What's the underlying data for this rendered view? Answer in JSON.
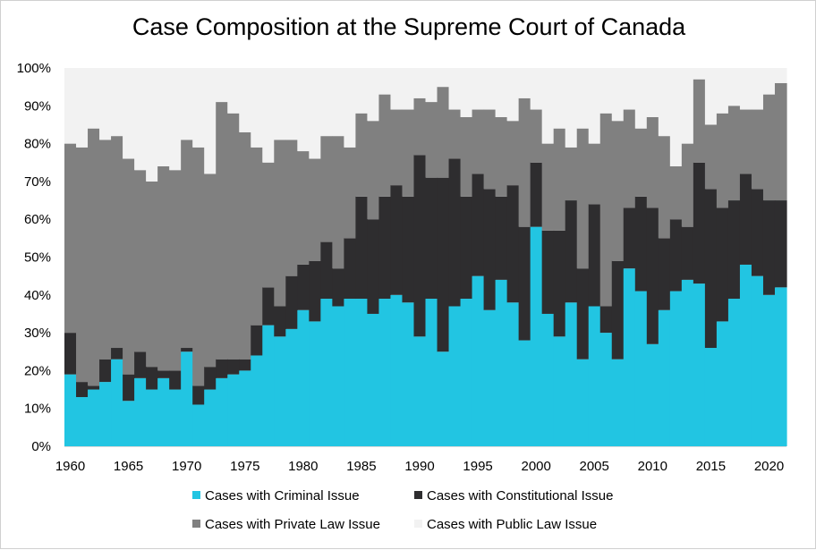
{
  "chart_data": {
    "type": "area",
    "title": "Case Composition at the Supreme Court of Canada",
    "stacked": true,
    "x": [
      1960,
      1961,
      1962,
      1963,
      1964,
      1965,
      1966,
      1967,
      1968,
      1969,
      1970,
      1971,
      1972,
      1973,
      1974,
      1975,
      1976,
      1977,
      1978,
      1979,
      1980,
      1981,
      1982,
      1983,
      1984,
      1985,
      1986,
      1987,
      1988,
      1989,
      1990,
      1991,
      1992,
      1993,
      1994,
      1995,
      1996,
      1997,
      1998,
      1999,
      2000,
      2001,
      2002,
      2003,
      2004,
      2005,
      2006,
      2007,
      2008,
      2009,
      2010,
      2011,
      2012,
      2013,
      2014,
      2015,
      2016,
      2017,
      2018,
      2019,
      2020,
      2021
    ],
    "x_ticks": [
      "1960",
      "1965",
      "1970",
      "1975",
      "1980",
      "1985",
      "1990",
      "1995",
      "2000",
      "2005",
      "2010",
      "2015",
      "2020"
    ],
    "y_ticks": [
      "0%",
      "10%",
      "20%",
      "30%",
      "40%",
      "50%",
      "60%",
      "70%",
      "80%",
      "90%",
      "100%"
    ],
    "ylim": [
      0,
      100
    ],
    "grid": false,
    "legend_position": "bottom",
    "series": [
      {
        "name": "Cases with Criminal Issue",
        "color": "#22C5E2",
        "values": [
          19,
          13,
          15,
          17,
          23,
          12,
          18,
          15,
          18,
          15,
          25,
          11,
          15,
          18,
          19,
          20,
          24,
          32,
          29,
          31,
          36,
          33,
          39,
          37,
          39,
          39,
          35,
          39,
          40,
          38,
          29,
          39,
          25,
          37,
          39,
          45,
          36,
          44,
          38,
          28,
          58,
          35,
          29,
          38,
          23,
          37,
          30,
          23,
          47,
          41,
          27,
          36,
          41,
          44,
          43,
          26,
          33,
          39,
          48,
          45,
          40,
          42
        ]
      },
      {
        "name": "Cases with Constitutional Issue",
        "color": "#2E2D2F",
        "values": [
          11,
          4,
          1,
          6,
          3,
          7,
          7,
          6,
          2,
          5,
          1,
          5,
          6,
          5,
          4,
          3,
          8,
          10,
          8,
          14,
          12,
          16,
          15,
          10,
          16,
          27,
          25,
          27,
          29,
          28,
          48,
          32,
          46,
          39,
          27,
          27,
          32,
          22,
          31,
          30,
          17,
          22,
          28,
          27,
          24,
          27,
          7,
          26,
          16,
          25,
          36,
          19,
          19,
          14,
          32,
          42,
          30,
          26,
          24,
          23,
          25,
          23
        ]
      },
      {
        "name": "Cases with Private Law Issue",
        "color": "#808080",
        "values": [
          50,
          62,
          68,
          58,
          56,
          57,
          48,
          49,
          54,
          53,
          55,
          63,
          51,
          68,
          65,
          60,
          47,
          33,
          44,
          36,
          30,
          27,
          28,
          35,
          24,
          22,
          26,
          27,
          20,
          23,
          15,
          20,
          24,
          13,
          21,
          17,
          21,
          21,
          17,
          34,
          14,
          23,
          27,
          14,
          37,
          16,
          51,
          37,
          26,
          18,
          24,
          27,
          14,
          22,
          22,
          17,
          25,
          25,
          17,
          21,
          28,
          31
        ]
      },
      {
        "name": "Cases with Public Law Issue",
        "color": "#F2F2F2",
        "values": [
          20,
          21,
          16,
          19,
          18,
          24,
          27,
          30,
          26,
          27,
          19,
          21,
          28,
          9,
          12,
          17,
          21,
          25,
          19,
          19,
          22,
          24,
          18,
          18,
          21,
          12,
          14,
          7,
          11,
          11,
          8,
          9,
          5,
          11,
          13,
          11,
          11,
          12,
          14,
          8,
          12,
          20,
          16,
          21,
          16,
          20,
          12,
          14,
          11,
          16,
          13,
          18,
          26,
          20,
          3,
          15,
          12,
          10,
          11,
          11,
          7,
          4
        ]
      }
    ]
  }
}
